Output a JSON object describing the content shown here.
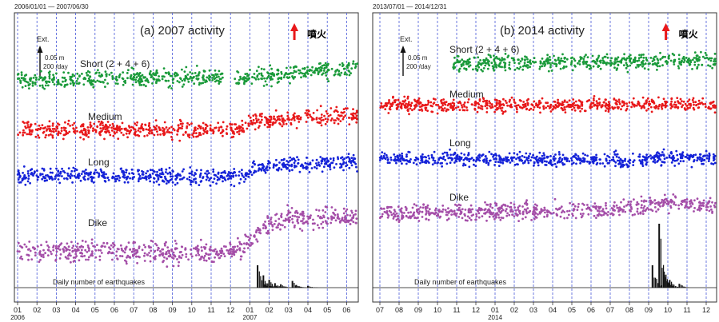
{
  "chart_data": [
    {
      "type": "scatter",
      "date_range": "2006/01/01 — 2007/06/30",
      "title": "(a) 2007 activity",
      "eruption_label": "噴火",
      "scale_label_axis": "Ext.",
      "scale_label_value": "0.05 m",
      "scale_label_rate": "200 /day",
      "x_tick_labels": [
        "01",
        "02",
        "03",
        "04",
        "05",
        "06",
        "07",
        "08",
        "09",
        "10",
        "11",
        "12",
        "01",
        "02",
        "03",
        "04",
        "05",
        "06"
      ],
      "year_labels": [
        {
          "label": "2006",
          "tick_index": 0
        },
        {
          "label": "2007",
          "tick_index": 12
        }
      ],
      "eruption_tick_index": 14.3,
      "series": [
        {
          "name": "Short (2 + 4 + 6)",
          "color": "#1a9a3a",
          "segments": [
            [
              0,
              4,
              0,
              0
            ],
            [
              4,
              10.6,
              0.1,
              0.15
            ],
            [
              11.2,
              18,
              0.05,
              0.75
            ]
          ],
          "noise": 0.45
        },
        {
          "name": "Medium",
          "color": "#e8181a",
          "segments": [
            [
              0,
              11.9,
              0,
              0.05
            ],
            [
              11.9,
              18,
              0.5,
              0.9
            ]
          ],
          "noise": 0.4
        },
        {
          "name": "Long",
          "color": "#1523d8",
          "segments": [
            [
              0,
              11.4,
              0,
              -0.1
            ],
            [
              11.4,
              12.3,
              -0.2,
              0.35
            ],
            [
              12.3,
              18,
              0.5,
              0.7
            ]
          ],
          "noise": 0.4
        },
        {
          "name": "Dike",
          "color": "#a44ea8",
          "segments": [
            [
              0,
              11.2,
              0,
              -0.15
            ],
            [
              11.2,
              13.2,
              -0.2,
              1.7
            ],
            [
              13.2,
              18,
              1.75,
              1.85
            ]
          ],
          "noise": 0.55
        }
      ],
      "earthquakes_label": "Daily number of earthquakes",
      "earthquake_bursts": [
        [
          12.4,
          1.0
        ],
        [
          12.7,
          0.55
        ],
        [
          13.0,
          0.35
        ],
        [
          13.3,
          0.2
        ],
        [
          13.6,
          0.15
        ],
        [
          14.2,
          0.3
        ],
        [
          14.4,
          0.12
        ],
        [
          15.0,
          0.08
        ]
      ]
    },
    {
      "type": "scatter",
      "date_range": "2013/07/01 — 2014/12/31",
      "title": "(b) 2014 activity",
      "eruption_label": "噴火",
      "scale_label_axis": "Ext.",
      "scale_label_value": "0.05 m",
      "scale_label_rate": "200 /day",
      "x_tick_labels": [
        "07",
        "08",
        "09",
        "10",
        "11",
        "12",
        "01",
        "02",
        "03",
        "04",
        "05",
        "06",
        "07",
        "08",
        "09",
        "10",
        "11",
        "12"
      ],
      "year_labels": [
        {
          "label": "2014",
          "tick_index": 6
        }
      ],
      "eruption_tick_index": 14.9,
      "series": [
        {
          "name": "Short (2 + 4 + 6)",
          "color": "#1a9a3a",
          "segments": [
            [
              3.8,
              18,
              0,
              0.2
            ]
          ],
          "noise": 0.4
        },
        {
          "name": "Medium",
          "color": "#e8181a",
          "segments": [
            [
              0,
              18,
              0,
              0.05
            ]
          ],
          "noise": 0.35
        },
        {
          "name": "Long",
          "color": "#1523d8",
          "segments": [
            [
              0,
              12.5,
              0,
              -0.1
            ],
            [
              12.5,
              14.5,
              -0.25,
              0.05
            ],
            [
              14.5,
              18,
              0.05,
              0
            ]
          ],
          "noise": 0.35
        },
        {
          "name": "Dike",
          "color": "#a44ea8",
          "segments": [
            [
              0,
              12.8,
              0,
              0.2
            ],
            [
              12.8,
              14.6,
              0.2,
              0.6
            ],
            [
              14.6,
              18,
              0.6,
              0.35
            ]
          ],
          "noise": 0.45
        }
      ],
      "earthquakes_label": "Daily number of earthquakes",
      "earthquake_bursts": [
        [
          14.2,
          0.35
        ],
        [
          14.55,
          1.0
        ],
        [
          14.8,
          0.25
        ],
        [
          15.1,
          0.12
        ],
        [
          15.6,
          0.06
        ]
      ]
    }
  ]
}
